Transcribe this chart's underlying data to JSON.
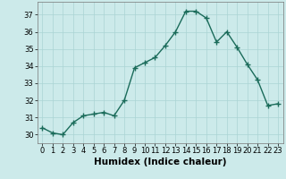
{
  "x": [
    0,
    1,
    2,
    3,
    4,
    5,
    6,
    7,
    8,
    9,
    10,
    11,
    12,
    13,
    14,
    15,
    16,
    17,
    18,
    19,
    20,
    21,
    22,
    23
  ],
  "y": [
    30.4,
    30.1,
    30.0,
    30.7,
    31.1,
    31.2,
    31.3,
    31.1,
    32.0,
    33.9,
    34.2,
    34.5,
    35.2,
    36.0,
    37.2,
    37.2,
    36.8,
    35.4,
    36.0,
    35.1,
    34.1,
    33.2,
    31.7,
    31.8
  ],
  "line_color": "#1a6b5a",
  "marker": "D",
  "marker_size": 2.5,
  "bg_color": "#cceaea",
  "grid_color": "#aad4d4",
  "xlabel": "Humidex (Indice chaleur)",
  "ylim": [
    29.5,
    37.75
  ],
  "xlim": [
    -0.5,
    23.5
  ],
  "yticks": [
    30,
    31,
    32,
    33,
    34,
    35,
    36,
    37
  ],
  "xticks": [
    0,
    1,
    2,
    3,
    4,
    5,
    6,
    7,
    8,
    9,
    10,
    11,
    12,
    13,
    14,
    15,
    16,
    17,
    18,
    19,
    20,
    21,
    22,
    23
  ],
  "tick_fontsize": 6,
  "xlabel_fontsize": 7.5,
  "line_width": 1.0
}
